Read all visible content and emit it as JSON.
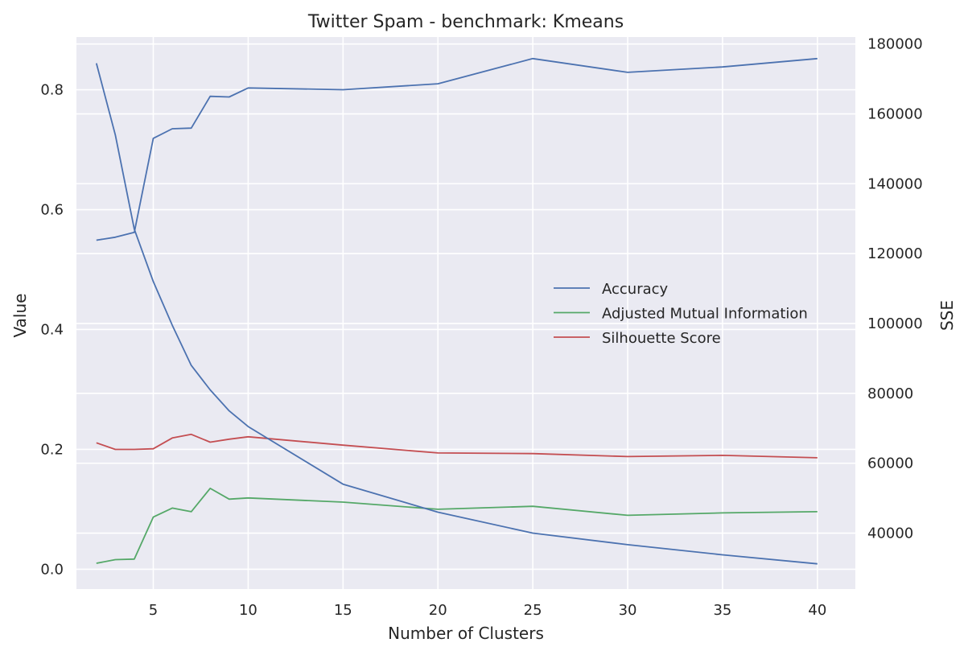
{
  "chart_data": {
    "type": "line",
    "title": "Twitter Spam - benchmark: Kmeans",
    "xlabel": "Number of Clusters",
    "ylabel": "Value",
    "y2label": "SSE",
    "x": [
      2,
      3,
      4,
      5,
      6,
      7,
      8,
      9,
      10,
      15,
      20,
      25,
      30,
      35,
      40
    ],
    "xticks": [
      5,
      10,
      15,
      20,
      25,
      30,
      35,
      40
    ],
    "xlim": [
      0.95,
      42.0
    ],
    "ylim": [
      -0.033,
      0.888
    ],
    "yticks": [
      0.0,
      0.2,
      0.4,
      0.6,
      0.8
    ],
    "ytick_labels": [
      "0.0",
      "0.2",
      "0.4",
      "0.6",
      "0.8"
    ],
    "y2lim": [
      24000,
      182000
    ],
    "y2ticks": [
      40000,
      60000,
      80000,
      100000,
      120000,
      140000,
      160000,
      180000
    ],
    "y2tick_labels": [
      "40000",
      "60000",
      "80000",
      "100000",
      "120000",
      "140000",
      "160000",
      "180000"
    ],
    "grid": true,
    "legend_position": "center-right",
    "series": [
      {
        "name": "Accuracy",
        "axis": "left",
        "color": "#4c72b0",
        "values": [
          0.549,
          0.554,
          0.562,
          0.719,
          0.735,
          0.736,
          0.789,
          0.788,
          0.803,
          0.8,
          0.81,
          0.852,
          0.829,
          0.838,
          0.852
        ]
      },
      {
        "name": "Adjusted Mutual Information",
        "axis": "left",
        "color": "#55a868",
        "values": [
          0.01,
          0.016,
          0.017,
          0.087,
          0.102,
          0.096,
          0.135,
          0.117,
          0.119,
          0.112,
          0.1,
          0.105,
          0.09,
          0.094,
          0.096
        ]
      },
      {
        "name": "Silhouette Score",
        "axis": "left",
        "color": "#c44e52",
        "values": [
          0.211,
          0.2,
          0.2,
          0.201,
          0.219,
          0.225,
          0.212,
          0.217,
          0.221,
          0.207,
          0.194,
          0.193,
          0.188,
          0.19,
          0.186
        ]
      },
      {
        "name": "",
        "axis": "right",
        "color": "#4c72b0",
        "values": [
          174500,
          154000,
          127000,
          112000,
          99500,
          88000,
          81000,
          75000,
          70500,
          54000,
          46000,
          40000,
          36700,
          33800,
          31200
        ]
      }
    ],
    "legend": [
      "Accuracy",
      "Adjusted Mutual Information",
      "Silhouette Score"
    ]
  }
}
